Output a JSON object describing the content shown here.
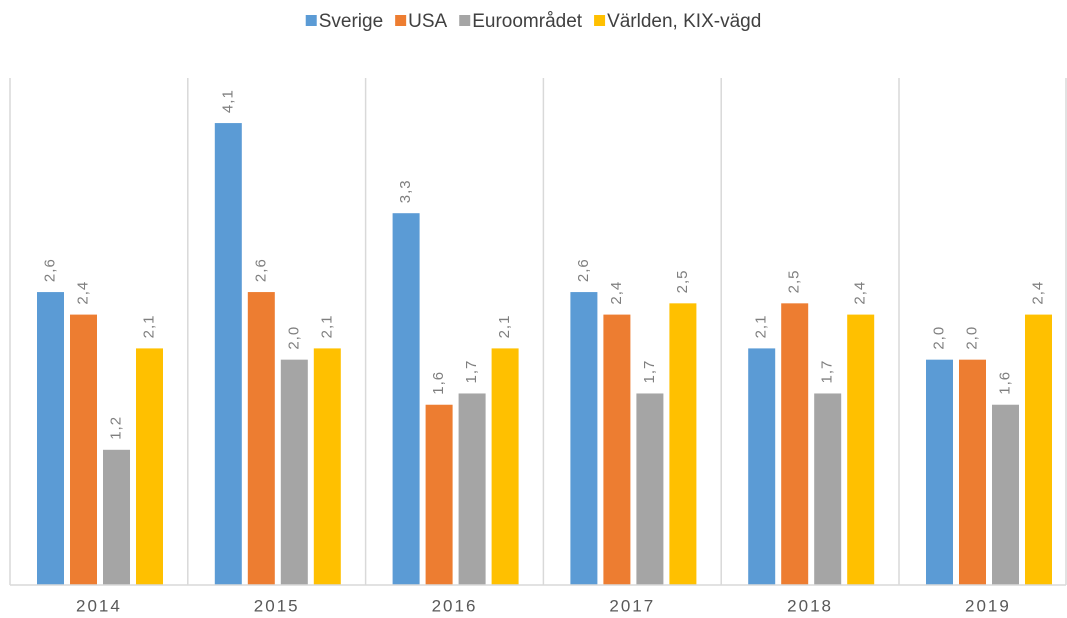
{
  "chart_data": {
    "type": "bar",
    "categories": [
      "2014",
      "2015",
      "2016",
      "2017",
      "2018",
      "2019"
    ],
    "series": [
      {
        "name": "Sverige",
        "color": "#5b9bd5",
        "values": [
          2.6,
          4.1,
          3.3,
          2.6,
          2.1,
          2.0
        ],
        "value_labels": [
          "2,6",
          "4,1",
          "3,3",
          "2,6",
          "2,1",
          "2,0"
        ]
      },
      {
        "name": "USA",
        "color": "#ed7d31",
        "values": [
          2.4,
          2.6,
          1.6,
          2.4,
          2.5,
          2.0
        ],
        "value_labels": [
          "2,4",
          "2,6",
          "1,6",
          "2,4",
          "2,5",
          "2,0"
        ]
      },
      {
        "name": "Euroområdet",
        "color": "#a5a5a5",
        "values": [
          1.2,
          2.0,
          1.7,
          1.7,
          1.7,
          1.6
        ],
        "value_labels": [
          "1,2",
          "2,0",
          "1,7",
          "1,7",
          "1,7",
          "1,6"
        ]
      },
      {
        "name": "Världen, KIX-vägd",
        "color": "#ffc000",
        "values": [
          2.1,
          2.1,
          2.1,
          2.5,
          2.4,
          2.4
        ],
        "value_labels": [
          "2,1",
          "2,1",
          "2,1",
          "2,5",
          "2,4",
          "2,4"
        ]
      }
    ],
    "ylim": [
      0,
      4.5
    ],
    "legend": "top"
  }
}
